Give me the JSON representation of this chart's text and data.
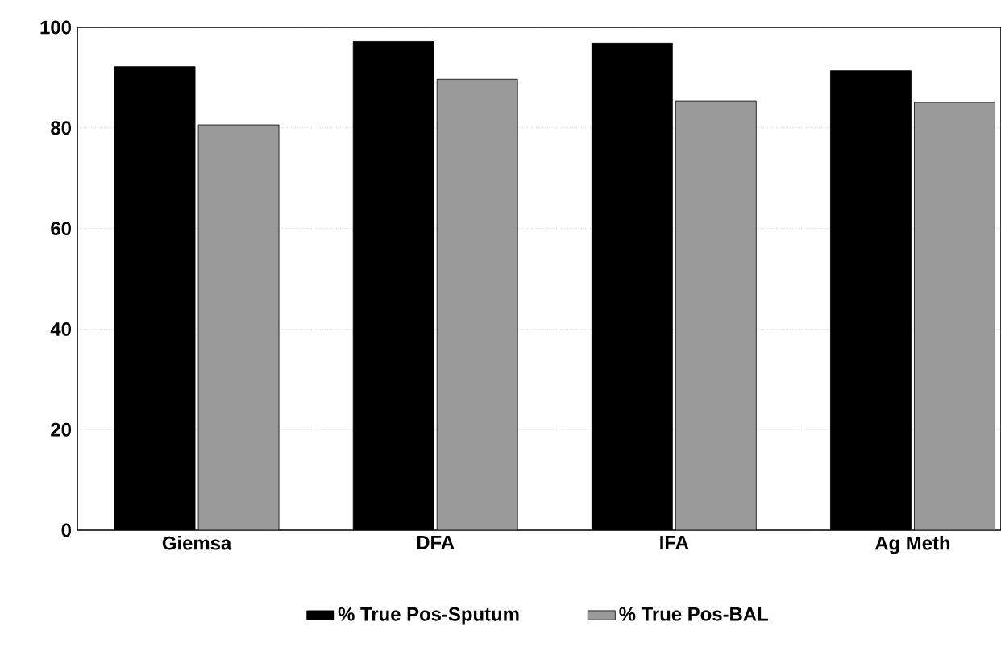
{
  "chart_data": {
    "type": "bar",
    "categories": [
      "Giemsa",
      "DFA",
      "IFA",
      "Ag Meth"
    ],
    "series": [
      {
        "name": "% True Pos-Sputum",
        "color": "#000000",
        "values": [
          92.2,
          97.2,
          96.9,
          91.4
        ]
      },
      {
        "name": "% True Pos-BAL",
        "color": "#9a9a9a",
        "values": [
          80.6,
          89.7,
          85.4,
          85.1
        ]
      }
    ],
    "ylim": [
      0,
      100
    ],
    "yticks": [
      0,
      20,
      40,
      60,
      80,
      100
    ],
    "grid": "y",
    "legend": "bottom"
  }
}
